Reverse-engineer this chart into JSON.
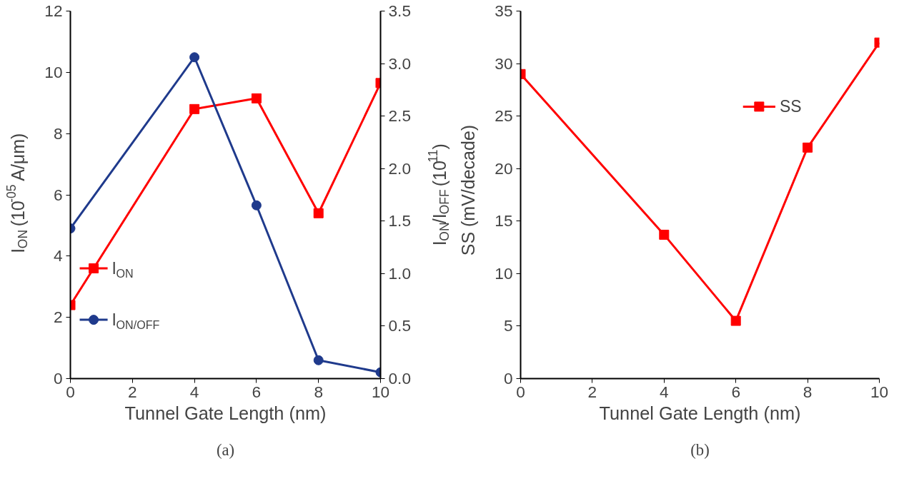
{
  "chart_data": [
    {
      "type": "line",
      "xlabel": "Tunnel Gate Length (nm)",
      "ylabel": "I$_{ON}$ (10$^{-05}$ A/μm)",
      "y2label": "I$_{ON}$/I$_{OFF}$ (10$^{11}$)",
      "x": [
        0,
        4,
        6,
        8,
        10
      ],
      "xlim": [
        0,
        10
      ],
      "xticks": [
        0,
        2,
        4,
        6,
        8,
        10
      ],
      "ylim": [
        0,
        12
      ],
      "yticks": [
        0,
        2,
        4,
        6,
        8,
        10,
        12
      ],
      "y2lim": [
        0,
        3.5
      ],
      "y2ticks": [
        {
          "value": 0,
          "label": "0.0"
        },
        {
          "value": 0.5,
          "label": "0.5"
        },
        {
          "value": 1,
          "label": "1.0"
        },
        {
          "value": 1.5,
          "label": "1.5"
        },
        {
          "value": 2,
          "label": "2.0"
        },
        {
          "value": 2.5,
          "label": "2.5"
        },
        {
          "value": 3,
          "label": "3.0"
        },
        {
          "value": 3.5,
          "label": "3.5"
        }
      ],
      "grid": false,
      "legend": "left",
      "annotations": [
        "(a)"
      ],
      "series": [
        {
          "name": "I$_{ON}$",
          "color": "#ff0000",
          "marker": "square",
          "values": [
            2.4,
            8.8,
            9.15,
            5.4,
            9.65
          ]
        },
        {
          "name": "I$_{ON/OFF}$",
          "color": "#1f3a8c",
          "marker": "circle",
          "axis": "y2",
          "values": [
            1.43,
            3.06,
            1.65,
            0.175,
            0.06
          ]
        }
      ]
    },
    {
      "type": "line",
      "xlabel": "Tunnel Gate Length (nm)",
      "ylabel": "SS (mV/decade)",
      "x": [
        0,
        4,
        6,
        8,
        10
      ],
      "xlim": [
        0,
        10
      ],
      "xticks": [
        0,
        2,
        4,
        6,
        8,
        10
      ],
      "ylim": [
        0,
        35
      ],
      "yticks": [
        0,
        5,
        10,
        15,
        20,
        25,
        30,
        35
      ],
      "grid": false,
      "legend": "right",
      "annotations": [
        "(b)"
      ],
      "series": [
        {
          "name": "SS",
          "color": "#ff0000",
          "marker": "square",
          "values": [
            29,
            13.7,
            5.5,
            22,
            32
          ]
        }
      ]
    }
  ]
}
